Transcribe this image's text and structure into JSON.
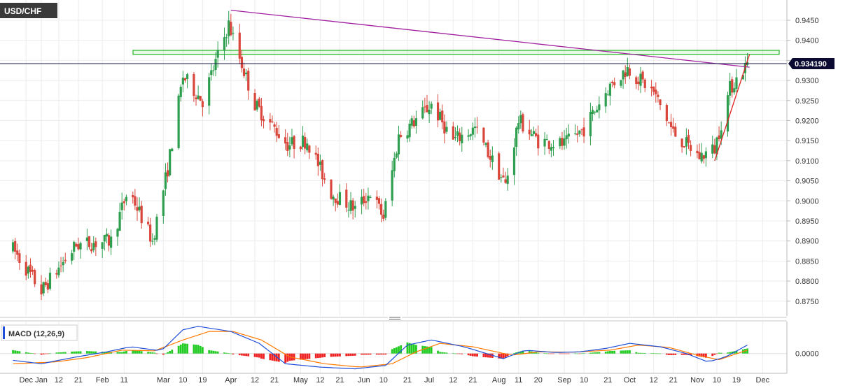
{
  "chart_data": [
    {
      "type": "candlestick",
      "symbol": "USD/CHF",
      "x_tick_labels": [
        "Dec",
        "Jan",
        "12",
        "21",
        "Feb",
        "11",
        "Mar",
        "10",
        "19",
        "Apr",
        "12",
        "21",
        "May",
        "12",
        "21",
        "Jun",
        "10",
        "21",
        "Jul",
        "12",
        "21",
        "Aug",
        "11",
        "20",
        "Sep",
        "10",
        "21",
        "Oct",
        "12",
        "21",
        "Nov",
        "10",
        "19",
        "Dec"
      ],
      "y_ticks": [
        "0.8750",
        "0.8800",
        "0.8850",
        "0.8900",
        "0.8950",
        "0.9000",
        "0.9050",
        "0.9100",
        "0.9150",
        "0.9200",
        "0.9250",
        "0.9300",
        "0.9350",
        "0.9400",
        "0.9450"
      ],
      "ylim": [
        0.872,
        0.949
      ],
      "grid": true,
      "current_price": 0.93419,
      "current_price_label": "0.934190",
      "resistance_zone": [
        0.9365,
        0.9375
      ],
      "trend_lines": [
        {
          "name": "falling resistance",
          "color": "#a020a0",
          "from": {
            "x": "Apr 1",
            "y": 0.9475
          },
          "to": {
            "x": "Nov 25",
            "y": 0.9333
          }
        },
        {
          "name": "rising support",
          "color": "#e02020",
          "from": {
            "x": "Nov 9",
            "y": 0.91
          },
          "to": {
            "x": "Nov 25",
            "y": 0.9365
          }
        }
      ],
      "anchors": [
        {
          "x": "Dec 22",
          "y": 0.888
        },
        {
          "x": "Jan 4",
          "y": 0.8775
        },
        {
          "x": "Jan 20",
          "y": 0.889
        },
        {
          "x": "Feb 5",
          "y": 0.89
        },
        {
          "x": "Feb 13",
          "y": 0.903
        },
        {
          "x": "Feb 24",
          "y": 0.89
        },
        {
          "x": "Mar 3",
          "y": 0.908
        },
        {
          "x": "Mar 10",
          "y": 0.931
        },
        {
          "x": "Mar 19",
          "y": 0.925
        },
        {
          "x": "Mar 31",
          "y": 0.944
        },
        {
          "x": "Apr 12",
          "y": 0.924
        },
        {
          "x": "Apr 27",
          "y": 0.914
        },
        {
          "x": "May 6",
          "y": 0.915
        },
        {
          "x": "May 17",
          "y": 0.902
        },
        {
          "x": "May 28",
          "y": 0.898
        },
        {
          "x": "Jun 4",
          "y": 0.902
        },
        {
          "x": "Jun 10",
          "y": 0.896
        },
        {
          "x": "Jun 17",
          "y": 0.916
        },
        {
          "x": "Jul 2",
          "y": 0.924
        },
        {
          "x": "Jul 12",
          "y": 0.915
        },
        {
          "x": "Jul 22",
          "y": 0.918
        },
        {
          "x": "Aug 5",
          "y": 0.904
        },
        {
          "x": "Aug 11",
          "y": 0.92
        },
        {
          "x": "Aug 20",
          "y": 0.915
        },
        {
          "x": "Sep 1",
          "y": 0.914
        },
        {
          "x": "Sep 10",
          "y": 0.918
        },
        {
          "x": "Sep 21",
          "y": 0.928
        },
        {
          "x": "Sep 30",
          "y": 0.933
        },
        {
          "x": "Oct 12",
          "y": 0.927
        },
        {
          "x": "Oct 21",
          "y": 0.917
        },
        {
          "x": "Nov 2",
          "y": 0.911
        },
        {
          "x": "Nov 9",
          "y": 0.913
        },
        {
          "x": "Nov 16",
          "y": 0.928
        },
        {
          "x": "Nov 24",
          "y": 0.9342
        }
      ]
    },
    {
      "type": "line",
      "title": "MACD (12,26,9)",
      "series_colors": {
        "macd": "#1f4fd8",
        "signal": "#ff7a00",
        "histogram_up": "#22cc22",
        "histogram_down": "#ee2222"
      },
      "y_ticks": [
        "0.0000"
      ],
      "x_tick_labels": [
        "Dec",
        "Jan",
        "12",
        "21",
        "Feb",
        "11",
        "Mar",
        "10",
        "19",
        "Apr",
        "12",
        "21",
        "May",
        "12",
        "21",
        "Jun",
        "10",
        "21",
        "Jul",
        "12",
        "21",
        "Aug",
        "11",
        "20",
        "Sep",
        "10",
        "21",
        "Oct",
        "12",
        "21",
        "Nov",
        "10",
        "19",
        "Dec"
      ],
      "macd_anchors": [
        {
          "x": "Dec 22",
          "y": -0.002
        },
        {
          "x": "Jan 4",
          "y": -0.003
        },
        {
          "x": "Jan 20",
          "y": -0.001
        },
        {
          "x": "Feb 3",
          "y": 0.0005
        },
        {
          "x": "Feb 14",
          "y": 0.002
        },
        {
          "x": "Feb 28",
          "y": 0.0008
        },
        {
          "x": "Mar 10",
          "y": 0.007
        },
        {
          "x": "Mar 17",
          "y": 0.008
        },
        {
          "x": "Apr 1",
          "y": 0.0065
        },
        {
          "x": "Apr 14",
          "y": 0.003
        },
        {
          "x": "Apr 26",
          "y": -0.003
        },
        {
          "x": "May 12",
          "y": -0.004
        },
        {
          "x": "May 28",
          "y": -0.0045
        },
        {
          "x": "Jun 11",
          "y": -0.0035
        },
        {
          "x": "Jun 21",
          "y": 0.0025
        },
        {
          "x": "Jul 2",
          "y": 0.004
        },
        {
          "x": "Jul 17",
          "y": 0.002
        },
        {
          "x": "Aug 4",
          "y": -0.0015
        },
        {
          "x": "Aug 14",
          "y": 0.001
        },
        {
          "x": "Aug 28",
          "y": 0.0003
        },
        {
          "x": "Sep 8",
          "y": 0.0005
        },
        {
          "x": "Sep 20",
          "y": 0.0015
        },
        {
          "x": "Oct 1",
          "y": 0.003
        },
        {
          "x": "Oct 15",
          "y": 0.002
        },
        {
          "x": "Oct 27",
          "y": 0.0
        },
        {
          "x": "Nov 6",
          "y": -0.0025
        },
        {
          "x": "Nov 14",
          "y": -0.001
        },
        {
          "x": "Nov 24",
          "y": 0.0025
        }
      ],
      "signal_anchors": [
        {
          "x": "Dec 22",
          "y": -0.003
        },
        {
          "x": "Jan 10",
          "y": -0.0025
        },
        {
          "x": "Jan 25",
          "y": -0.0012
        },
        {
          "x": "Feb 10",
          "y": 0.001
        },
        {
          "x": "Feb 25",
          "y": 0.0008
        },
        {
          "x": "Mar 10",
          "y": 0.004
        },
        {
          "x": "Mar 22",
          "y": 0.0065
        },
        {
          "x": "Apr 2",
          "y": 0.0065
        },
        {
          "x": "Apr 15",
          "y": 0.004
        },
        {
          "x": "Apr 28",
          "y": -0.001
        },
        {
          "x": "May 14",
          "y": -0.003
        },
        {
          "x": "May 30",
          "y": -0.004
        },
        {
          "x": "Jun 14",
          "y": -0.003
        },
        {
          "x": "Jun 25",
          "y": 0.0005
        },
        {
          "x": "Jul 6",
          "y": 0.003
        },
        {
          "x": "Jul 21",
          "y": 0.002
        },
        {
          "x": "Aug 8",
          "y": -0.0005
        },
        {
          "x": "Aug 20",
          "y": 0.0005
        },
        {
          "x": "Sep 5",
          "y": 0.0004
        },
        {
          "x": "Sep 22",
          "y": 0.001
        },
        {
          "x": "Oct 5",
          "y": 0.0025
        },
        {
          "x": "Oct 19",
          "y": 0.0018
        },
        {
          "x": "Nov 1",
          "y": -0.0005
        },
        {
          "x": "Nov 11",
          "y": -0.0018
        },
        {
          "x": "Nov 24",
          "y": 0.001
        }
      ]
    }
  ]
}
